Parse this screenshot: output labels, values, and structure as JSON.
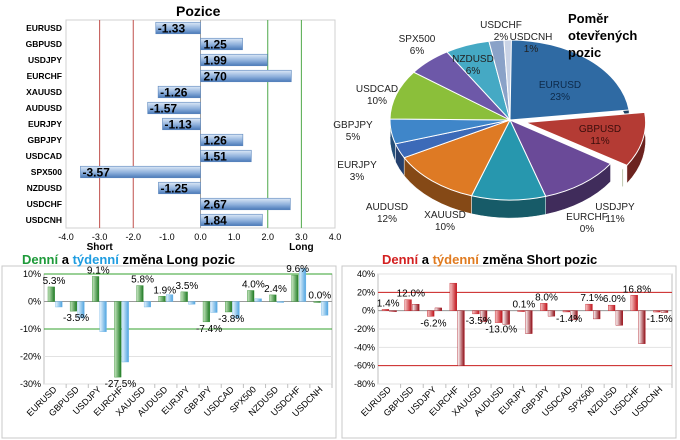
{
  "positions": {
    "title": "Pozice",
    "short_label": "Short",
    "long_label": "Long",
    "chart_data": {
      "type": "bar",
      "orientation": "horizontal",
      "title": "Pozice",
      "categories": [
        "EURUSD",
        "GBPUSD",
        "USDJPY",
        "EURCHF",
        "XAUUSD",
        "AUDUSD",
        "EURJPY",
        "GBPJPY",
        "USDCAD",
        "SPX500",
        "NZDUSD",
        "USDCHF",
        "USDCNH"
      ],
      "values": [
        -1.33,
        1.25,
        1.99,
        2.7,
        -1.26,
        -1.57,
        -1.13,
        1.26,
        1.51,
        -3.57,
        -1.25,
        2.67,
        1.84
      ],
      "labels": [
        "-1.33",
        "1.25",
        "1.99",
        "2.70",
        "-1.26",
        "-1.57",
        "-1.13",
        "1.26",
        "1.51",
        "-3.57",
        "-1.25",
        "2.67",
        "1.84"
      ],
      "xlim": [
        -4.0,
        4.0
      ],
      "xticks": [
        "-4.0",
        "-3.0",
        "-2.0",
        "-1.0",
        "0.0",
        "1.0",
        "2.0",
        "3.0",
        "4.0"
      ],
      "reference_lines": [
        -3,
        -2,
        2,
        3
      ],
      "colors": {
        "bar_dark": "#4a79b8",
        "bar_light": "#dde9f7",
        "neg_line": "#c0504d",
        "pos_line": "#4fa84a",
        "grid": "#d9d9d9"
      }
    }
  },
  "pie": {
    "title_lines": [
      "Poměr",
      "otevřených",
      "pozic"
    ],
    "chart_data": {
      "type": "pie",
      "title": "Poměr otevřených pozic",
      "labels": [
        "EURUSD",
        "GBPUSD",
        "EURCHF",
        "USDJPY",
        "XAUUSD",
        "AUDUSD",
        "EURJPY",
        "GBPJPY",
        "USDCAD",
        "SPX500",
        "NZDUSD",
        "USDCHF",
        "USDCNH"
      ],
      "values": [
        23,
        11,
        0,
        11,
        10,
        12,
        3,
        5,
        10,
        6,
        6,
        2,
        1
      ],
      "value_labels": [
        "23%",
        "11%",
        "0%",
        "11%",
        "10%",
        "12%",
        "3%",
        "5%",
        "10%",
        "6%",
        "6%",
        "2%",
        "1%"
      ],
      "colors": [
        "#2f6aa3",
        "#b43b34",
        "#7ea632",
        "#6a4a98",
        "#2797ae",
        "#de7a24",
        "#3c6ab8",
        "#3f86c9",
        "#8bbf3a",
        "#6d58a8",
        "#45a9c4",
        "#8aa2c8",
        "#c9d3e6"
      ]
    }
  },
  "long": {
    "title_parts": [
      "Denní",
      " a ",
      "týdenní",
      " změna Long pozic"
    ],
    "chart_data": {
      "type": "bar",
      "title": "Denní a týdenní změna Long pozic",
      "categories": [
        "EURUSD",
        "GBPUSD",
        "USDJPY",
        "EURCHF",
        "XAUUSD",
        "AUDUSD",
        "EURJPY",
        "GBPJPY",
        "USDCAD",
        "SPX500",
        "NZDUSD",
        "USDCHF",
        "USDCNH"
      ],
      "series": [
        {
          "values": [
            5.3,
            -3.5,
            9.1,
            -27.5,
            5.8,
            1.9,
            3.5,
            -7.4,
            -3.8,
            4.0,
            2.4,
            9.6,
            0.0
          ]
        },
        {
          "values": [
            -2.0,
            -6.0,
            -11.0,
            -22.0,
            -2.0,
            2.5,
            -1.0,
            -4.0,
            -6.0,
            1.0,
            0.0,
            12.0,
            -5.0
          ]
        }
      ],
      "data_labels": [
        "5.3%",
        "-3.5%",
        "9.1%",
        "-27.5%",
        "5.8%",
        "1.9%",
        "3.5%",
        "-7.4%",
        "-3.8%",
        "4.0%",
        "2.4%",
        "9.6%",
        "0.0%"
      ],
      "ylim": [
        -30,
        10
      ],
      "yticks": [
        "10%",
        "0%",
        "-10%",
        "-20%",
        "-30%"
      ],
      "colors": {
        "daily": "#2e8b2e",
        "weekly": "#6cb4e8",
        "ref_line": "#33a02c"
      }
    }
  },
  "short": {
    "title_parts": [
      "Denní",
      " a ",
      "týdenní",
      " změna Short pozic"
    ],
    "chart_data": {
      "type": "bar",
      "title": "Denní a týdenní změna Short pozic",
      "categories": [
        "EURUSD",
        "GBPUSD",
        "USDJPY",
        "EURCHF",
        "XAUUSD",
        "AUDUSD",
        "EURJPY",
        "GBPJPY",
        "USDCAD",
        "SPX500",
        "NZDUSD",
        "USDCHF",
        "USDCNH"
      ],
      "series": [
        {
          "values": [
            1.4,
            12.0,
            -6.2,
            30.0,
            -3.5,
            -13.0,
            0.1,
            8.0,
            -1.4,
            7.1,
            6.0,
            16.8,
            -1.5
          ]
        },
        {
          "values": [
            -1.0,
            7.0,
            3.0,
            -60.0,
            -12.0,
            -15.0,
            -25.0,
            -6.0,
            -10.0,
            -9.0,
            -16.0,
            -36.0,
            -2.0
          ]
        }
      ],
      "data_labels": [
        "1.4%",
        "12.0%",
        "-6.2%",
        "",
        "-3.5%",
        "-13.0%",
        "0.1%",
        "8.0%",
        "-1.4%",
        "7.1%",
        "6.0%",
        "16.8%",
        "-1.5%"
      ],
      "ylim": [
        -80,
        40
      ],
      "yticks": [
        "40%",
        "20%",
        "0%",
        "-20%",
        "-40%",
        "-60%",
        "-80%"
      ],
      "colors": {
        "daily": "#c0141c",
        "weekly": "#a8101a",
        "ref_line": "#cc2020"
      }
    }
  }
}
